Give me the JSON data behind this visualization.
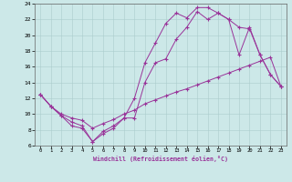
{
  "xlabel": "Windchill (Refroidissement éolien,°C)",
  "xlim_min": -0.5,
  "xlim_max": 23.5,
  "ylim_min": 6,
  "ylim_max": 24,
  "xticks": [
    0,
    1,
    2,
    3,
    4,
    5,
    6,
    7,
    8,
    9,
    10,
    11,
    12,
    13,
    14,
    15,
    16,
    17,
    18,
    19,
    20,
    21,
    22,
    23
  ],
  "yticks": [
    6,
    8,
    10,
    12,
    14,
    16,
    18,
    20,
    22,
    24
  ],
  "bg_color": "#cce8e8",
  "line_color": "#993399",
  "grid_color": "#aacccc",
  "line1_x": [
    0,
    1,
    2,
    3,
    4,
    5,
    6,
    7,
    8,
    9,
    10,
    11,
    12,
    13,
    14,
    15,
    16,
    17,
    18,
    19,
    20,
    21,
    22,
    23
  ],
  "line1_y": [
    12.5,
    11.0,
    9.8,
    9.0,
    8.5,
    6.5,
    7.8,
    8.5,
    9.5,
    12.0,
    16.5,
    19.0,
    21.5,
    22.8,
    22.2,
    23.5,
    23.5,
    22.8,
    22.0,
    21.0,
    20.8,
    17.5,
    15.0,
    13.5
  ],
  "line2_x": [
    0,
    1,
    2,
    3,
    4,
    5,
    6,
    7,
    8,
    9,
    10,
    11,
    12,
    13,
    14,
    15,
    16,
    17,
    18,
    19,
    20,
    21,
    22,
    23
  ],
  "line2_y": [
    12.5,
    11.0,
    9.8,
    8.5,
    8.2,
    6.5,
    7.5,
    8.2,
    9.5,
    9.5,
    14.0,
    16.5,
    17.0,
    19.5,
    21.0,
    23.0,
    22.0,
    22.8,
    22.0,
    17.5,
    21.0,
    17.5,
    15.0,
    13.5
  ],
  "line3_x": [
    0,
    1,
    2,
    3,
    4,
    5,
    6,
    7,
    8,
    9,
    10,
    11,
    12,
    13,
    14,
    15,
    16,
    17,
    18,
    19,
    20,
    21,
    22,
    23
  ],
  "line3_y": [
    12.5,
    11.0,
    10.0,
    9.5,
    9.2,
    8.2,
    8.8,
    9.3,
    10.0,
    10.5,
    11.3,
    11.8,
    12.3,
    12.8,
    13.2,
    13.7,
    14.2,
    14.7,
    15.2,
    15.7,
    16.2,
    16.7,
    17.2,
    13.5
  ]
}
